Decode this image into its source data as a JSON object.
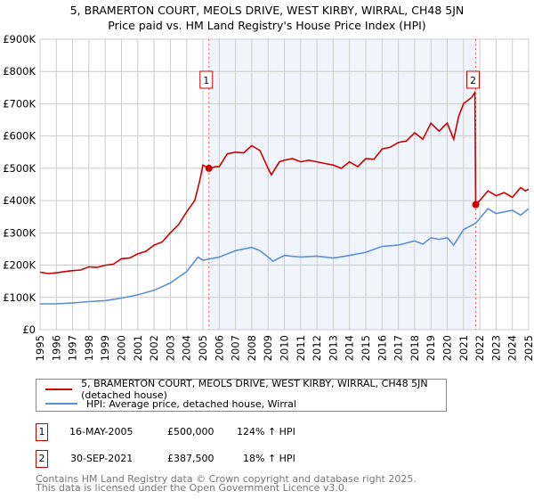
{
  "chart_data": {
    "type": "line",
    "title": "5, BRAMERTON COURT, MEOLS DRIVE, WEST KIRBY, WIRRAL, CH48 5JN",
    "subtitle": "Price paid vs. HM Land Registry's House Price Index (HPI)",
    "xlim": [
      1995,
      2025
    ],
    "ylim": [
      0,
      900000
    ],
    "yticks": [
      {
        "v": 0,
        "l": "£0"
      },
      {
        "v": 100000,
        "l": "£100K"
      },
      {
        "v": 200000,
        "l": "£200K"
      },
      {
        "v": 300000,
        "l": "£300K"
      },
      {
        "v": 400000,
        "l": "£400K"
      },
      {
        "v": 500000,
        "l": "£500K"
      },
      {
        "v": 600000,
        "l": "£600K"
      },
      {
        "v": 700000,
        "l": "£700K"
      },
      {
        "v": 800000,
        "l": "£800K"
      },
      {
        "v": 900000,
        "l": "£900K"
      }
    ],
    "xticks": [
      "1995",
      "1996",
      "1997",
      "1998",
      "1999",
      "2000",
      "2001",
      "2002",
      "2003",
      "2004",
      "2005",
      "2006",
      "2007",
      "2008",
      "2009",
      "2010",
      "2011",
      "2012",
      "2013",
      "2014",
      "2015",
      "2016",
      "2017",
      "2018",
      "2019",
      "2020",
      "2021",
      "2022",
      "2023",
      "2024",
      "2025"
    ],
    "grid": true,
    "series": [
      {
        "name": "5, BRAMERTON COURT, MEOLS DRIVE, WEST KIRBY, WIRRAL, CH48 5JN (detached house)",
        "color": "#cc0000",
        "x": [
          1995,
          1995.5,
          1996,
          1996.5,
          1997,
          1997.5,
          1998,
          1998.5,
          1999,
          1999.5,
          2000,
          2000.5,
          2001,
          2001.5,
          2002,
          2002.5,
          2003,
          2003.5,
          2004,
          2004.5,
          2004.8,
          2005,
          2005.37,
          2005.8,
          2006,
          2006.5,
          2007,
          2007.5,
          2008,
          2008.5,
          2009,
          2009.2,
          2009.7,
          2010,
          2010.5,
          2011,
          2011.5,
          2012,
          2012.5,
          2013,
          2013.5,
          2014,
          2014.5,
          2015,
          2015.5,
          2016,
          2016.5,
          2017,
          2017.5,
          2018,
          2018.5,
          2019,
          2019.5,
          2020,
          2020.4,
          2020.7,
          2021,
          2021.5,
          2021.7,
          2021.75,
          2022,
          2022.5,
          2023,
          2023.5,
          2024,
          2024.5,
          2024.8,
          2025
        ],
        "y": [
          178000,
          174000,
          176000,
          180000,
          183000,
          185000,
          195000,
          193000,
          200000,
          203000,
          220000,
          222000,
          235000,
          243000,
          262000,
          272000,
          300000,
          325000,
          365000,
          400000,
          460000,
          510000,
          500000,
          505000,
          505000,
          545000,
          550000,
          548000,
          570000,
          555000,
          500000,
          480000,
          520000,
          525000,
          530000,
          520000,
          525000,
          520000,
          515000,
          510000,
          500000,
          520000,
          505000,
          530000,
          528000,
          560000,
          565000,
          580000,
          585000,
          610000,
          590000,
          640000,
          615000,
          640000,
          590000,
          660000,
          700000,
          720000,
          735000,
          387500,
          400000,
          430000,
          415000,
          425000,
          410000,
          440000,
          430000,
          435000
        ]
      },
      {
        "name": "HPI: Average price, detached house, Wirral",
        "color": "#5b8fd6",
        "x": [
          1995,
          1996,
          1997,
          1998,
          1999,
          2000,
          2001,
          2002,
          2003,
          2004,
          2004.7,
          2005,
          2006,
          2007,
          2008,
          2008.5,
          2009,
          2009.3,
          2010,
          2011,
          2012,
          2013,
          2014,
          2015,
          2016,
          2017,
          2018,
          2018.5,
          2019,
          2019.5,
          2020,
          2020.4,
          2021,
          2021.75,
          2022,
          2022.5,
          2023,
          2023.5,
          2024,
          2024.5,
          2025
        ],
        "y": [
          80000,
          80000,
          83000,
          87000,
          90000,
          98000,
          108000,
          122000,
          145000,
          180000,
          225000,
          215000,
          225000,
          245000,
          255000,
          245000,
          225000,
          212000,
          230000,
          225000,
          228000,
          222000,
          230000,
          240000,
          258000,
          262000,
          275000,
          265000,
          285000,
          280000,
          285000,
          262000,
          310000,
          330000,
          345000,
          375000,
          360000,
          365000,
          370000,
          355000,
          375000
        ]
      }
    ],
    "sales": [
      {
        "label": "1",
        "x": 2005.37,
        "y": 500000
      },
      {
        "label": "2",
        "x": 2021.75,
        "y": 387500
      }
    ]
  },
  "legend": {
    "items": [
      "5, BRAMERTON COURT, MEOLS DRIVE, WEST KIRBY, WIRRAL, CH48 5JN (detached house)",
      "HPI: Average price, detached house, Wirral"
    ]
  },
  "transactions": [
    {
      "num": "1",
      "date": "16-MAY-2005",
      "price": "£500,000",
      "hpi": "124% ↑ HPI"
    },
    {
      "num": "2",
      "date": "30-SEP-2021",
      "price": "£387,500",
      "hpi": "18% ↑ HPI"
    }
  ],
  "footer": [
    "Contains HM Land Registry data © Crown copyright and database right 2025.",
    "This data is licensed under the Open Government Licence v3.0."
  ],
  "colors": {
    "red": "#cc0000",
    "blue": "#5b8fd6",
    "shade": "#f0f4fd"
  }
}
